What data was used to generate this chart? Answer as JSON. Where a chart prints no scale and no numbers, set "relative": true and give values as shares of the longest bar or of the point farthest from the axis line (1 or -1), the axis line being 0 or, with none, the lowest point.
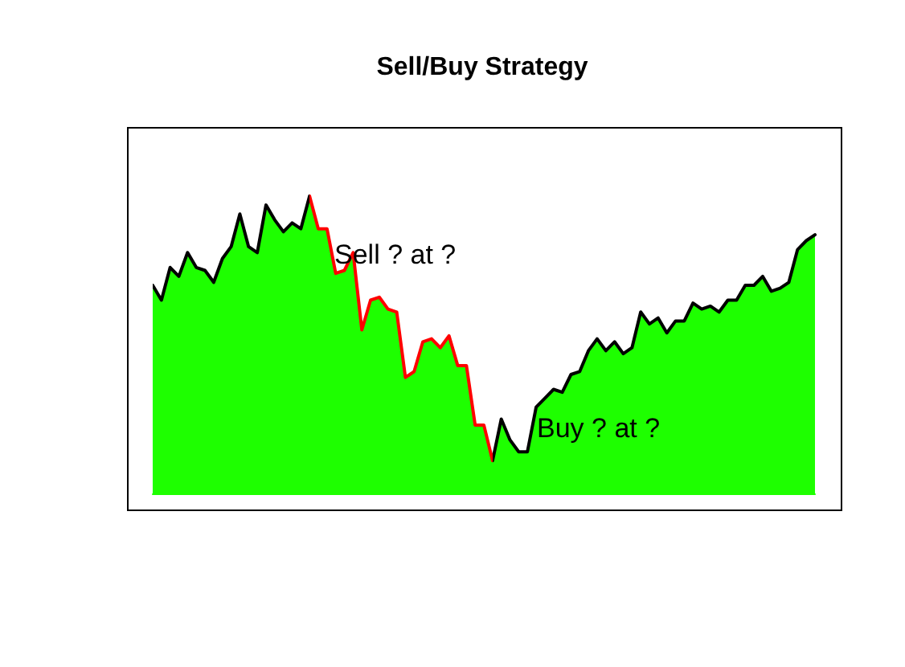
{
  "chart_data": {
    "type": "area",
    "title": "Sell/Buy Strategy",
    "relative": true,
    "tick_labels": false,
    "grid": false,
    "marker": "none",
    "line_style": "solid",
    "annotations": [
      "Sell ? at ?",
      "Buy ? at ?"
    ],
    "categories": [
      null,
      null,
      null,
      null,
      null,
      null,
      null,
      null,
      null,
      null,
      null,
      null,
      null,
      null,
      null,
      null,
      null,
      null,
      null,
      null,
      null,
      null,
      null,
      null,
      null,
      null,
      null,
      null,
      null,
      null,
      null,
      null,
      null,
      null,
      null,
      null,
      null,
      null,
      null,
      null,
      null,
      null,
      null,
      null,
      null,
      null,
      null,
      null,
      null,
      null,
      null,
      null,
      null,
      null,
      null,
      null,
      null,
      null,
      null,
      null,
      null,
      null,
      null,
      null,
      null,
      null,
      null,
      null,
      null,
      null,
      null,
      null,
      null,
      null,
      null,
      null,
      null
    ],
    "series": [
      {
        "color": "#1eff00",
        "values": [
          0.7,
          0.65,
          0.76,
          0.73,
          0.81,
          0.76,
          0.75,
          0.71,
          0.79,
          0.83,
          0.94,
          0.83,
          0.81,
          0.97,
          0.92,
          0.88,
          0.91,
          0.89,
          1.0,
          0.89,
          0.89,
          0.74,
          0.75,
          0.81,
          0.55,
          0.65,
          0.66,
          0.62,
          0.61,
          0.39,
          0.41,
          0.51,
          0.52,
          0.49,
          0.53,
          0.43,
          0.43,
          0.23,
          0.23,
          0.11,
          0.25,
          0.18,
          0.14,
          0.14,
          0.29,
          0.32,
          0.35,
          0.34,
          0.4,
          0.41,
          0.48,
          0.52,
          0.48,
          0.51,
          0.47,
          0.49,
          0.61,
          0.57,
          0.59,
          0.54,
          0.58,
          0.58,
          0.64,
          0.62,
          0.63,
          0.61,
          0.65,
          0.65,
          0.7,
          0.7,
          0.73,
          0.68,
          0.69,
          0.71,
          0.82,
          0.85,
          0.87
        ],
        "colors": [
          "#000000",
          "#000000",
          "#000000",
          "#000000",
          "#000000",
          "#000000",
          "#000000",
          "#000000",
          "#000000",
          "#000000",
          "#000000",
          "#000000",
          "#000000",
          "#000000",
          "#000000",
          "#000000",
          "#000000",
          "#000000",
          "#ff0000",
          "#ff0000",
          "#ff0000",
          "#ff0000",
          "#ff0000",
          "#ff0000",
          "#ff0000",
          "#ff0000",
          "#ff0000",
          "#ff0000",
          "#ff0000",
          "#ff0000",
          "#ff0000",
          "#ff0000",
          "#ff0000",
          "#ff0000",
          "#ff0000",
          "#ff0000",
          "#ff0000",
          "#ff0000",
          "#ff0000",
          "#000000",
          "#000000",
          "#000000",
          "#000000",
          "#000000",
          "#000000",
          "#000000",
          "#000000",
          "#000000",
          "#000000",
          "#000000",
          "#000000",
          "#000000",
          "#000000",
          "#000000",
          "#000000",
          "#000000",
          "#000000",
          "#000000",
          "#000000",
          "#000000",
          "#000000",
          "#000000",
          "#000000",
          "#000000",
          "#000000",
          "#000000",
          "#000000",
          "#000000",
          "#000000",
          "#000000",
          "#000000",
          "#000000",
          "#000000",
          "#000000",
          "#000000",
          "#000000",
          "#000000"
        ]
      }
    ]
  }
}
